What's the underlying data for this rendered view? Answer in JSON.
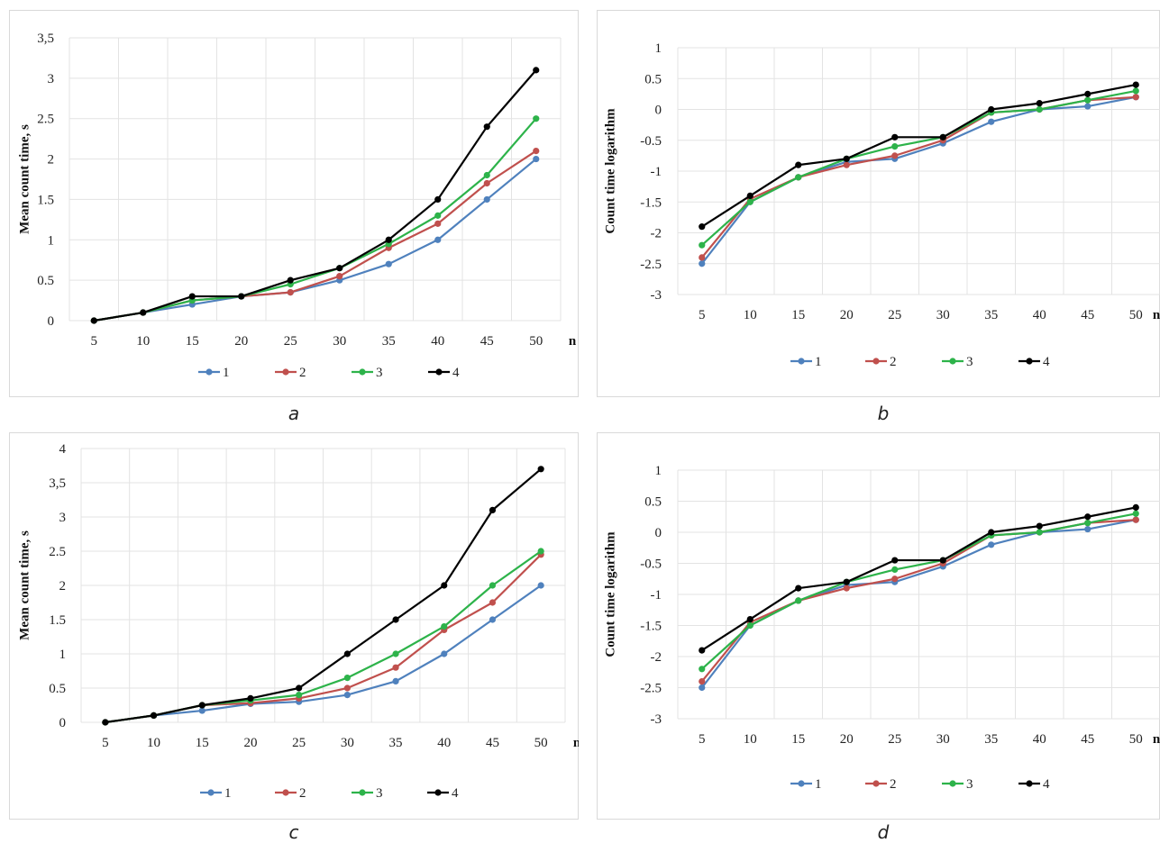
{
  "colors": {
    "1": "#4f81bd",
    "2": "#c0504d",
    "3": "#2db34a",
    "4": "#000000"
  },
  "panels": [
    {
      "caption": "a",
      "chart_data": {
        "type": "line",
        "title": "",
        "xlabel": "n",
        "ylabel": "Mean count time, s",
        "x": [
          5,
          10,
          15,
          20,
          25,
          30,
          35,
          40,
          45,
          50
        ],
        "xticks": [
          "5",
          "10",
          "15",
          "20",
          "25",
          "30",
          "35",
          "40",
          "45",
          "50"
        ],
        "ylim": [
          0,
          3.5
        ],
        "yticks": [
          0,
          0.5,
          1,
          1.5,
          2,
          2.5,
          3,
          3.5
        ],
        "ytick_labels": [
          "0",
          "0.5",
          "1",
          "1.5",
          "2",
          "2.5",
          "3",
          "3,5"
        ],
        "grid": true,
        "legend": "bottom",
        "series": [
          {
            "name": "1",
            "values": [
              0,
              0.1,
              0.2,
              0.3,
              0.35,
              0.5,
              0.7,
              1.0,
              1.5,
              2.0
            ]
          },
          {
            "name": "2",
            "values": [
              0,
              0.1,
              0.25,
              0.3,
              0.35,
              0.55,
              0.9,
              1.2,
              1.7,
              2.1
            ]
          },
          {
            "name": "3",
            "values": [
              0,
              0.1,
              0.25,
              0.3,
              0.45,
              0.65,
              0.95,
              1.3,
              1.8,
              2.5
            ]
          },
          {
            "name": "4",
            "values": [
              0,
              0.1,
              0.3,
              0.3,
              0.5,
              0.65,
              1.0,
              1.5,
              2.4,
              3.1
            ]
          }
        ]
      }
    },
    {
      "caption": "b",
      "chart_data": {
        "type": "line",
        "title": "",
        "xlabel": "n",
        "ylabel": "Count time logarithm",
        "x": [
          5,
          10,
          15,
          20,
          25,
          30,
          35,
          40,
          45,
          50
        ],
        "xticks": [
          "5",
          "10",
          "15",
          "20",
          "25",
          "30",
          "35",
          "40",
          "45",
          "50"
        ],
        "ylim": [
          -3,
          1
        ],
        "yticks": [
          -3,
          -2.5,
          -2,
          -1.5,
          -1,
          -0.5,
          0,
          0.5,
          1
        ],
        "ytick_labels": [
          "-3",
          "-2.5",
          "-2",
          "-1.5",
          "-1",
          "-0.5",
          "0",
          "0.5",
          "1"
        ],
        "grid": true,
        "legend": "bottom",
        "series": [
          {
            "name": "1",
            "values": [
              -2.5,
              -1.5,
              -1.1,
              -0.85,
              -0.8,
              -0.55,
              -0.2,
              0,
              0.05,
              0.2
            ]
          },
          {
            "name": "2",
            "values": [
              -2.4,
              -1.45,
              -1.1,
              -0.9,
              -0.75,
              -0.5,
              -0.05,
              0,
              0.15,
              0.2
            ]
          },
          {
            "name": "3",
            "values": [
              -2.2,
              -1.5,
              -1.1,
              -0.8,
              -0.6,
              -0.45,
              -0.05,
              0,
              0.15,
              0.3
            ]
          },
          {
            "name": "4",
            "values": [
              -1.9,
              -1.4,
              -0.9,
              -0.8,
              -0.45,
              -0.45,
              0,
              0.1,
              0.25,
              0.4
            ]
          }
        ]
      }
    },
    {
      "caption": "c",
      "chart_data": {
        "type": "line",
        "title": "",
        "xlabel": "n",
        "ylabel": "Mean count time, s",
        "x": [
          5,
          10,
          15,
          20,
          25,
          30,
          35,
          40,
          45,
          50
        ],
        "xticks": [
          "5",
          "10",
          "15",
          "20",
          "25",
          "30",
          "35",
          "40",
          "45",
          "50"
        ],
        "ylim": [
          0,
          4
        ],
        "yticks": [
          0,
          0.5,
          1,
          1.5,
          2,
          2.5,
          3,
          3.5,
          4
        ],
        "ytick_labels": [
          "0",
          "0.5",
          "1",
          "1.5",
          "2",
          "2.5",
          "3",
          "3,5",
          "4"
        ],
        "grid": true,
        "legend": "bottom",
        "series": [
          {
            "name": "1",
            "values": [
              0,
              0.1,
              0.17,
              0.27,
              0.3,
              0.4,
              0.6,
              1.0,
              1.5,
              2.0
            ]
          },
          {
            "name": "2",
            "values": [
              0,
              0.1,
              0.25,
              0.28,
              0.35,
              0.5,
              0.8,
              1.35,
              1.75,
              2.45
            ]
          },
          {
            "name": "3",
            "values": [
              0,
              0.1,
              0.25,
              0.32,
              0.4,
              0.65,
              1.0,
              1.4,
              2.0,
              2.5
            ]
          },
          {
            "name": "4",
            "values": [
              0,
              0.1,
              0.25,
              0.35,
              0.5,
              1.0,
              1.5,
              2.0,
              3.1,
              3.7
            ]
          }
        ]
      }
    },
    {
      "caption": "d",
      "chart_data": {
        "type": "line",
        "title": "",
        "xlabel": "n",
        "ylabel": "Count time logarithm",
        "x": [
          5,
          10,
          15,
          20,
          25,
          30,
          35,
          40,
          45,
          50
        ],
        "xticks": [
          "5",
          "10",
          "15",
          "20",
          "25",
          "30",
          "35",
          "40",
          "45",
          "50"
        ],
        "ylim": [
          -3,
          1
        ],
        "yticks": [
          -3,
          -2.5,
          -2,
          -1.5,
          -1,
          -0.5,
          0,
          0.5,
          1
        ],
        "ytick_labels": [
          "-3",
          "-2.5",
          "-2",
          "-1.5",
          "-1",
          "-0.5",
          "0",
          "0.5",
          "1"
        ],
        "grid": true,
        "legend": "bottom",
        "series": [
          {
            "name": "1",
            "values": [
              -2.5,
              -1.5,
              -1.1,
              -0.85,
              -0.8,
              -0.55,
              -0.2,
              0,
              0.05,
              0.2
            ]
          },
          {
            "name": "2",
            "values": [
              -2.4,
              -1.45,
              -1.1,
              -0.9,
              -0.75,
              -0.5,
              -0.05,
              0,
              0.15,
              0.2
            ]
          },
          {
            "name": "3",
            "values": [
              -2.2,
              -1.5,
              -1.1,
              -0.8,
              -0.6,
              -0.45,
              -0.05,
              0,
              0.15,
              0.3
            ]
          },
          {
            "name": "4",
            "values": [
              -1.9,
              -1.4,
              -0.9,
              -0.8,
              -0.45,
              -0.45,
              0,
              0.1,
              0.25,
              0.4
            ]
          }
        ]
      }
    }
  ]
}
